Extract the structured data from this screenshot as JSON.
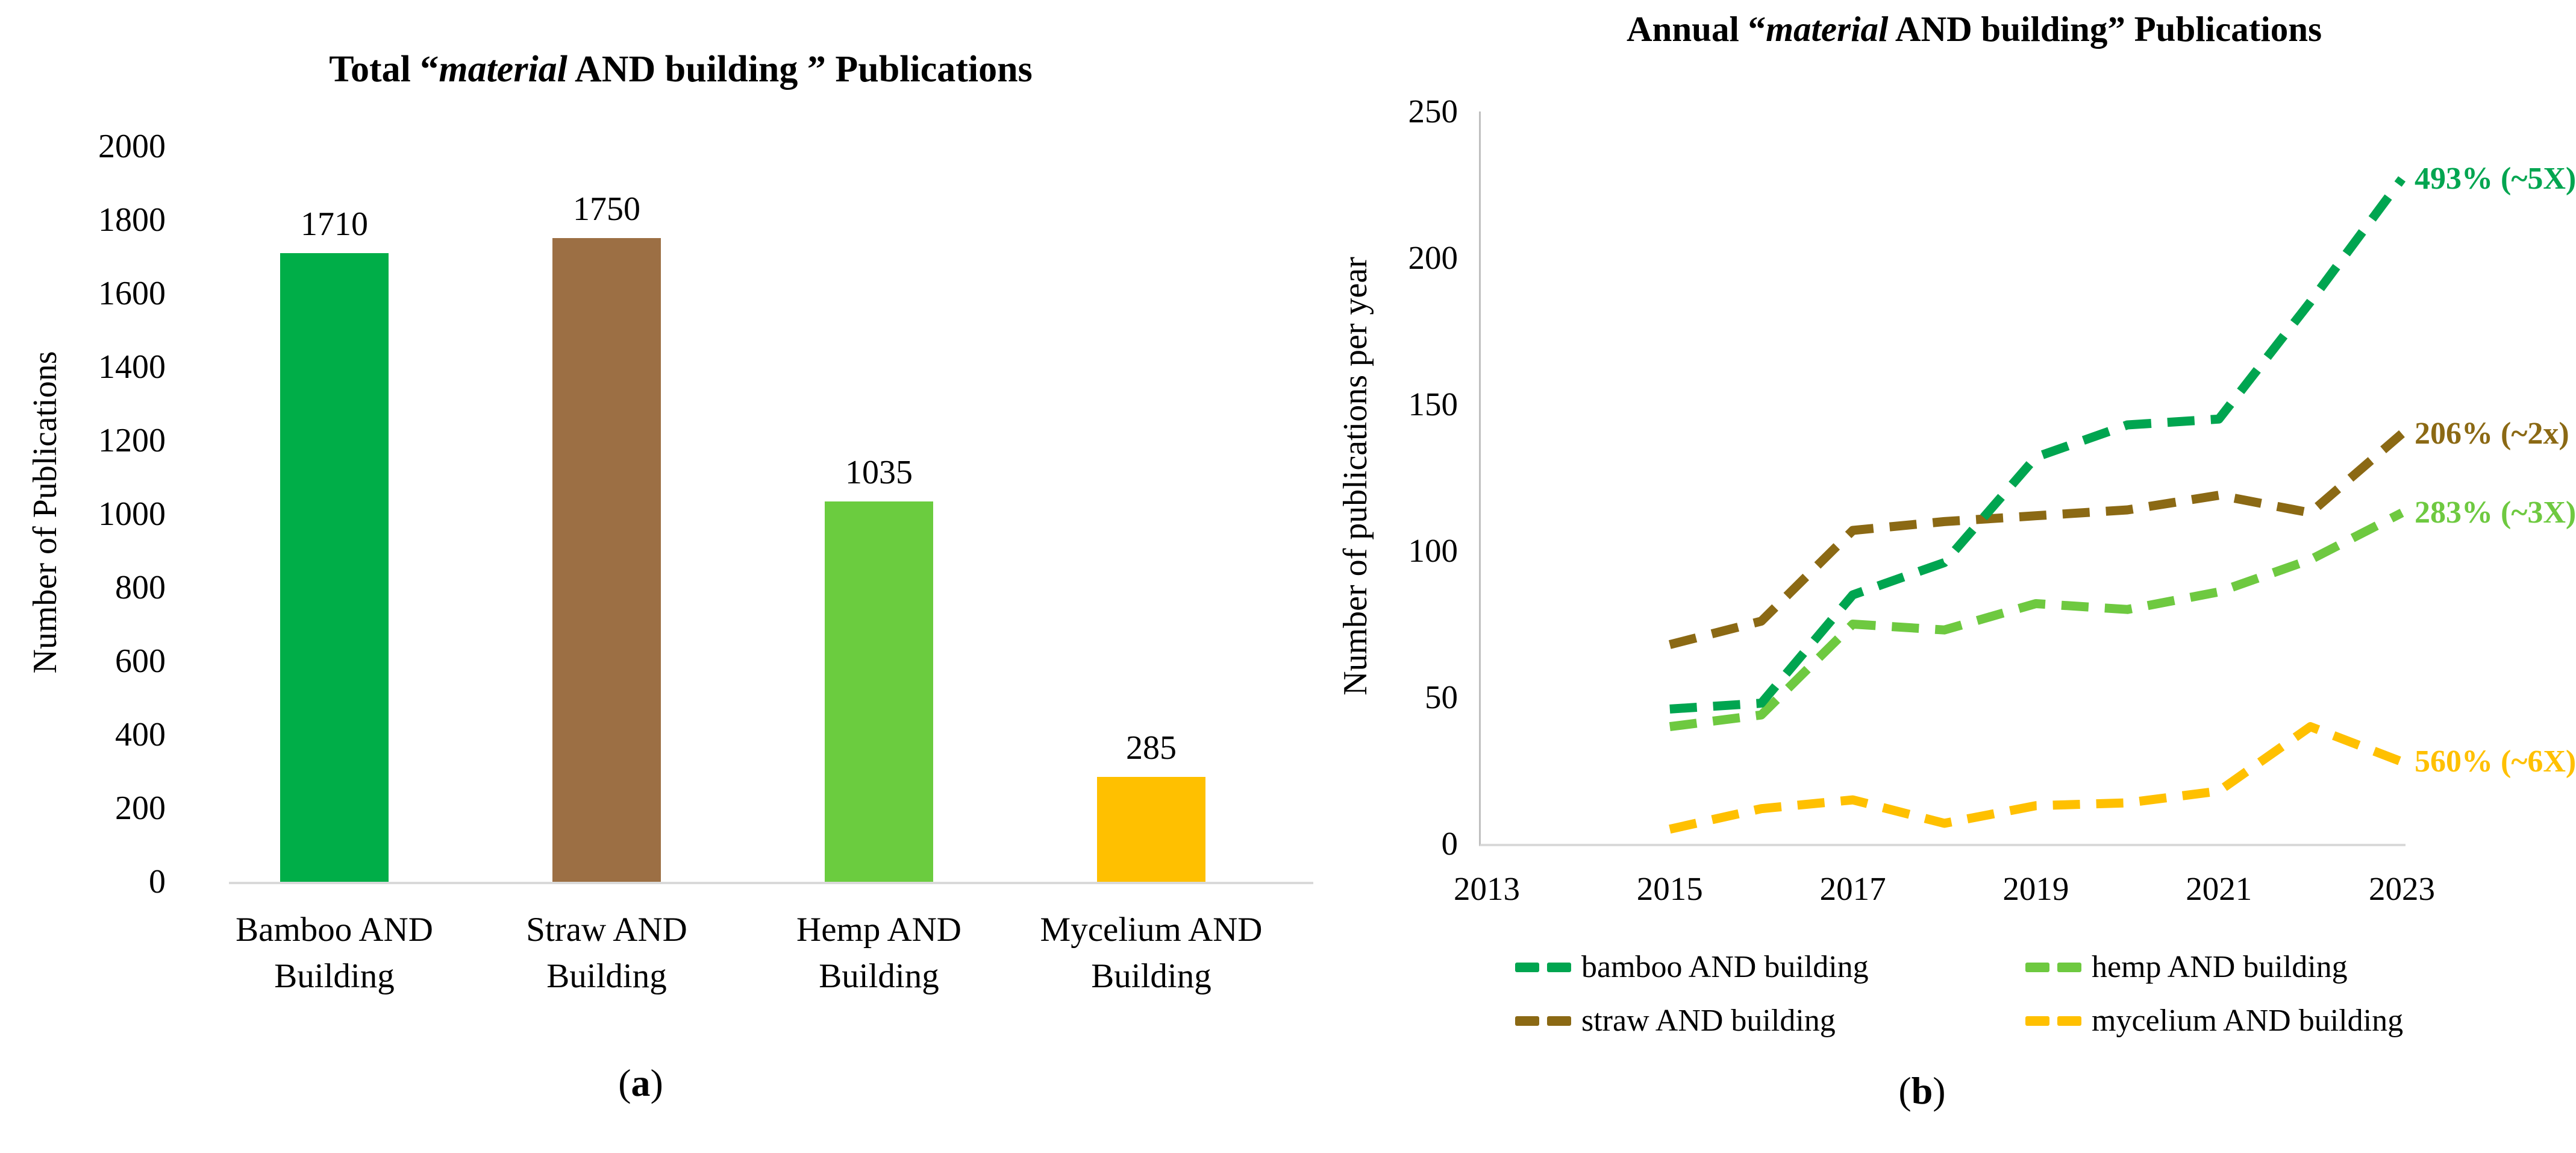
{
  "figure": {
    "panel_a": {
      "title": {
        "pre": "Total “",
        "italic": "material",
        "post": " AND building ” Publications"
      },
      "y_axis_label": "Number of Publications",
      "y_ticks": [
        "2000",
        "1800",
        "1600",
        "1400",
        "1200",
        "1000",
        "800",
        "600",
        "400",
        "200",
        "0"
      ],
      "caption": {
        "open": "(",
        "letter": "a",
        "close": ")"
      }
    },
    "panel_b": {
      "title": {
        "pre": "Annual “",
        "italic": "material",
        "post": " AND building” Publications"
      },
      "y_axis_label": "Number of publications per year",
      "y_ticks": [
        "250",
        "200",
        "150",
        "100",
        "50",
        "0"
      ],
      "x_ticks": [
        "2013",
        "2015",
        "2017",
        "2019",
        "2021",
        "2023"
      ],
      "legend": [
        {
          "label": "bamboo AND building",
          "color": "#00A550"
        },
        {
          "label": "hemp AND building",
          "color": "#6EC940"
        },
        {
          "label": "straw AND building",
          "color": "#8B6914"
        },
        {
          "label": "mycelium AND building",
          "color": "#FFC000"
        }
      ],
      "caption": {
        "open": "(",
        "letter": "b",
        "close": ")"
      }
    },
    "colors": {
      "axis_line": "#BFBFBF",
      "baseline": "#D9D9D9",
      "text": "#000000"
    }
  },
  "chart_data": [
    {
      "type": "bar",
      "title": "Total “material AND building ” Publications",
      "categories": [
        "Bamboo AND Building",
        "Straw AND Building",
        "Hemp AND Building",
        "Mycelium AND Building"
      ],
      "values": [
        1710,
        1750,
        1035,
        285
      ],
      "bar_colors": [
        "#00AE48",
        "#9C6F44",
        "#6BCC3F",
        "#FFC000"
      ],
      "xlabel": "",
      "ylabel": "Number of Publications",
      "ylim": [
        0,
        2000
      ],
      "ytick_step": 200,
      "grid": false,
      "data_labels": true
    },
    {
      "type": "line",
      "title": "Annual “material AND building” Publications",
      "xlabel": "",
      "ylabel": "Number of publications per year",
      "ylim": [
        0,
        250
      ],
      "xlim": [
        2013,
        2023
      ],
      "x_ticks": [
        "2013",
        "2015",
        "2017",
        "2019",
        "2021",
        "2023"
      ],
      "x": [
        2015,
        2016,
        2017,
        2018,
        2019,
        2020,
        2021,
        2022,
        2023
      ],
      "line_style": "dashed",
      "grid": false,
      "legend_position": "bottom",
      "series": [
        {
          "name": "straw AND building",
          "color": "#8B6914",
          "values": [
            68,
            76,
            107,
            110,
            112,
            114,
            119,
            113,
            140
          ]
        },
        {
          "name": "hemp AND building",
          "color": "#6EC940",
          "values": [
            40,
            44,
            75,
            73,
            82,
            80,
            86,
            97,
            113
          ]
        },
        {
          "name": "mycelium AND building",
          "color": "#FFC000",
          "values": [
            5,
            12,
            15,
            7,
            13,
            14,
            18,
            40,
            28
          ]
        },
        {
          "name": "bamboo AND building",
          "color": "#00A550",
          "values": [
            46,
            48,
            85,
            96,
            132,
            143,
            145,
            185,
            227
          ]
        }
      ],
      "annotations": [
        {
          "text": "493% (~5X)",
          "series": "bamboo AND building",
          "color": "#00A550",
          "at_value": 227
        },
        {
          "text": "206% (~2x)",
          "series": "straw AND building",
          "color": "#8B6914",
          "at_value": 140
        },
        {
          "text": "283% (~3X)",
          "series": "hemp AND building",
          "color": "#6EC940",
          "at_value": 113
        },
        {
          "text": "560% (~6X)",
          "series": "mycelium AND building",
          "color": "#FFC000",
          "at_value": 28
        }
      ]
    }
  ]
}
